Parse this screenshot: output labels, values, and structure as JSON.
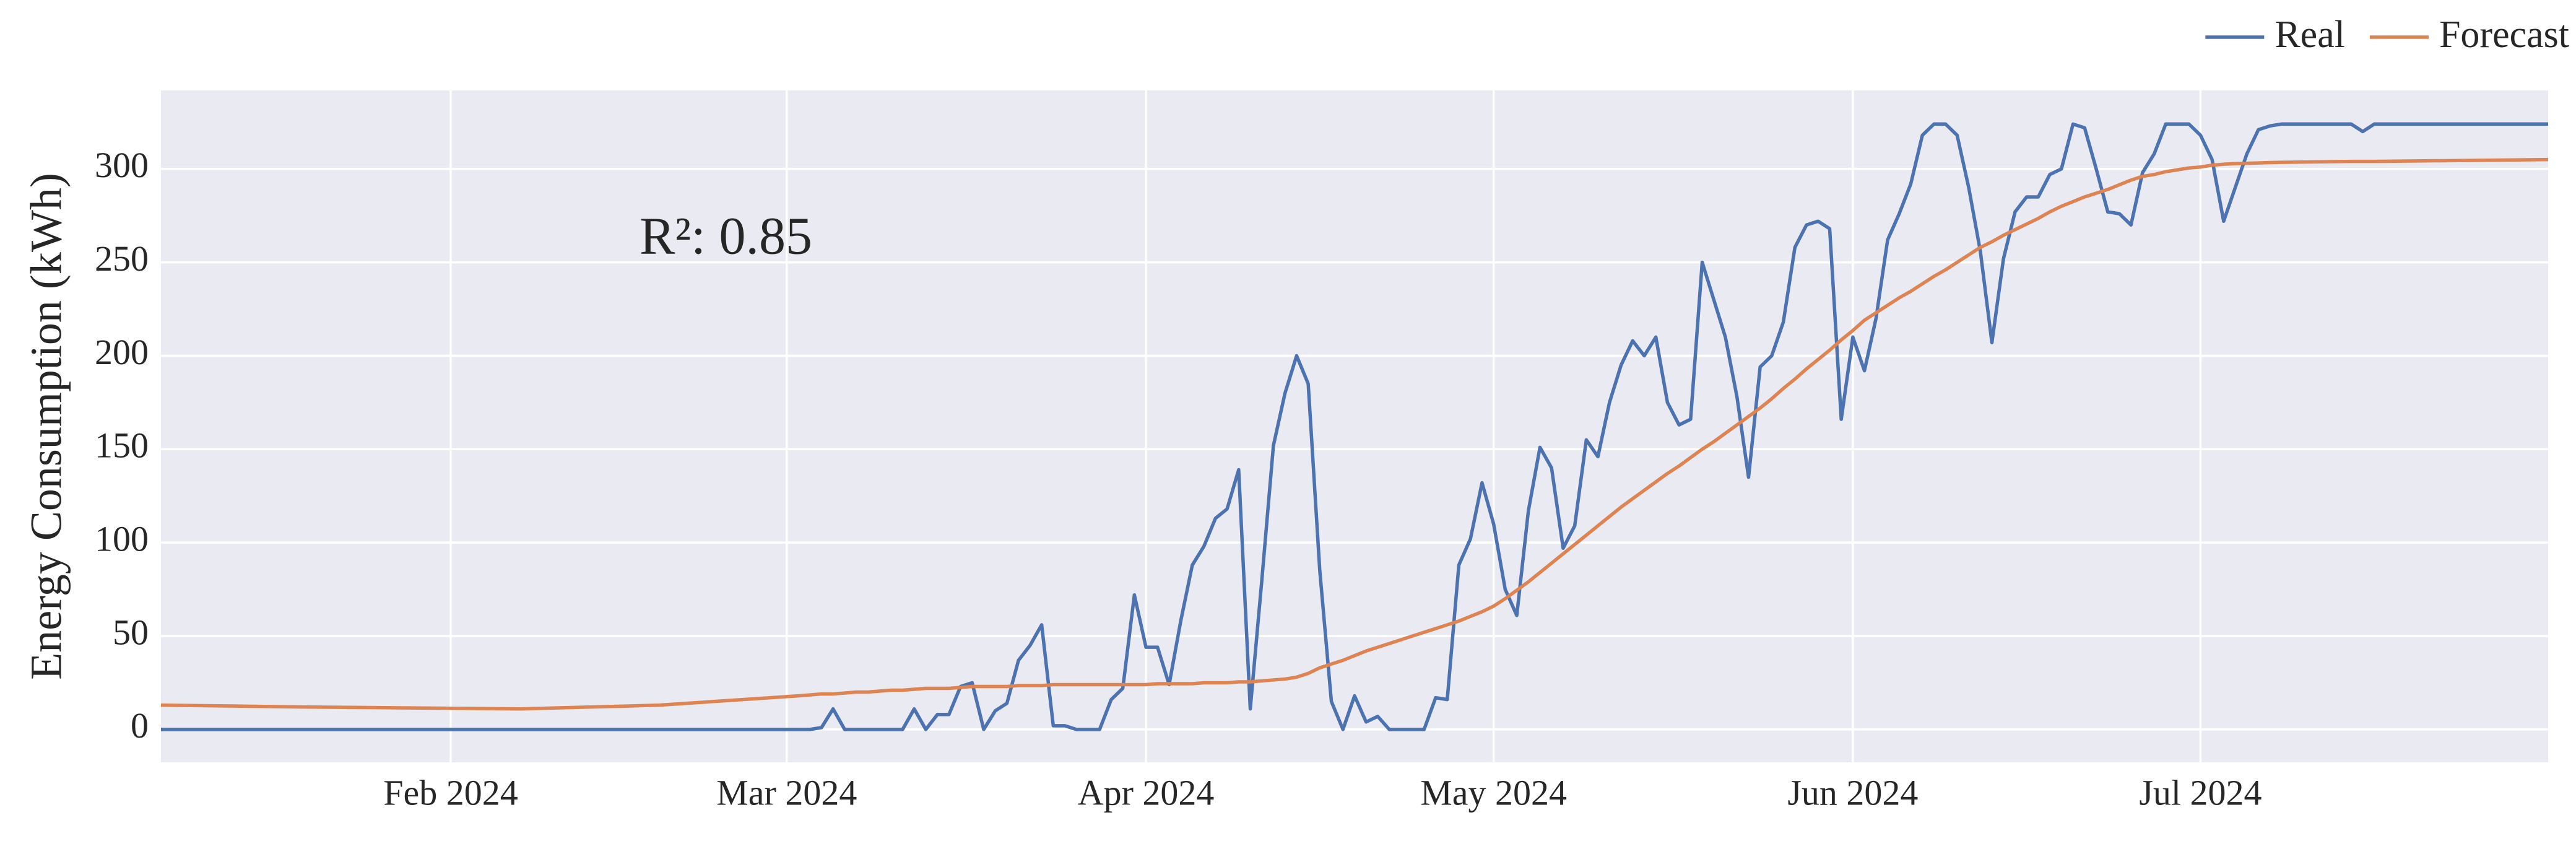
{
  "chart_data": {
    "type": "line",
    "ylabel": "Energy Consumption (kWh)",
    "annotation": "R²: 0.85",
    "legend": "top-right",
    "grid": true,
    "xlim": [
      7,
      213
    ],
    "ylim": [
      -17.6,
      342
    ],
    "xticks": [
      {
        "value": 32,
        "label": "Feb 2024"
      },
      {
        "value": 61,
        "label": "Mar 2024"
      },
      {
        "value": 92,
        "label": "Apr 2024"
      },
      {
        "value": 122,
        "label": "May 2024"
      },
      {
        "value": 153,
        "label": "Jun 2024"
      },
      {
        "value": 183,
        "label": "Jul 2024"
      }
    ],
    "yticks": [
      0,
      50,
      100,
      150,
      200,
      250,
      300
    ],
    "x": [
      7,
      20,
      38,
      50,
      62,
      63,
      64,
      65,
      66,
      67,
      68,
      69,
      70,
      71,
      72,
      73,
      74,
      75,
      76,
      77,
      78,
      79,
      80,
      81,
      82,
      83,
      84,
      85,
      86,
      87,
      88,
      89,
      90,
      91,
      92,
      93,
      94,
      95,
      96,
      97,
      98,
      99,
      100,
      101,
      102,
      103,
      104,
      105,
      106,
      107,
      108,
      109,
      110,
      111,
      112,
      113,
      114,
      115,
      116,
      117,
      118,
      119,
      120,
      121,
      122,
      123,
      124,
      125,
      126,
      127,
      128,
      129,
      130,
      131,
      132,
      133,
      134,
      135,
      136,
      137,
      138,
      139,
      140,
      141,
      142,
      143,
      144,
      145,
      146,
      147,
      148,
      149,
      150,
      151,
      152,
      153,
      154,
      155,
      156,
      157,
      158,
      159,
      160,
      161,
      162,
      163,
      164,
      165,
      166,
      167,
      168,
      169,
      170,
      171,
      172,
      173,
      174,
      175,
      176,
      177,
      178,
      179,
      180,
      181,
      182,
      183,
      184,
      185,
      186,
      187,
      188,
      189,
      190,
      196,
      197,
      198,
      213
    ],
    "series": [
      {
        "name": "Real",
        "color": "#4c72b0",
        "values": [
          0,
          0,
          0,
          0,
          0,
          0,
          1,
          11,
          0,
          0,
          0,
          0,
          0,
          0,
          11,
          0,
          8,
          8,
          23,
          25,
          0,
          10,
          14,
          37,
          45,
          56,
          2,
          2,
          0,
          0,
          0,
          16,
          22,
          72,
          44,
          44,
          24,
          58,
          88,
          98,
          113,
          118,
          139,
          11,
          80,
          152,
          180,
          200,
          185,
          85,
          15,
          0,
          18,
          4,
          7,
          0,
          0,
          0,
          0,
          17,
          16,
          88,
          102,
          132,
          110,
          75,
          61,
          117,
          151,
          140,
          97,
          109,
          155,
          146,
          175,
          195,
          208,
          200,
          210,
          175,
          163,
          166,
          250,
          230,
          210,
          178,
          135,
          194,
          200,
          218,
          258,
          270,
          272,
          268,
          166,
          210,
          192,
          220,
          262,
          276,
          292,
          318,
          324,
          324,
          318,
          290,
          256,
          207,
          252,
          277,
          285,
          285,
          297,
          300,
          324,
          322,
          300,
          277,
          276,
          270,
          298,
          308,
          324,
          324,
          324,
          318,
          305,
          272,
          290,
          308,
          321,
          323,
          324,
          324,
          320,
          324,
          324
        ]
      },
      {
        "name": "Forecast",
        "color": "#dd8452",
        "values": [
          13,
          12,
          11,
          13,
          18,
          18.5,
          19,
          19,
          19.5,
          20,
          20,
          20.5,
          21,
          21,
          21.5,
          22,
          22,
          22,
          22.5,
          23,
          23,
          23,
          23,
          23.5,
          23.5,
          23.5,
          24,
          24,
          24,
          24,
          24,
          24,
          24,
          24,
          24,
          24.5,
          24.5,
          24.5,
          24.5,
          25,
          25,
          25,
          25.5,
          25.5,
          26,
          26.5,
          27,
          28,
          30,
          33,
          35,
          37,
          39.5,
          42,
          44,
          46,
          48,
          50,
          52,
          54,
          56,
          58,
          60.5,
          63,
          66,
          70,
          74.5,
          79,
          84,
          89,
          94,
          99,
          104,
          109,
          114,
          119,
          123.5,
          128,
          132.5,
          137,
          141,
          145.5,
          150,
          154,
          158.5,
          163,
          167.5,
          172,
          177,
          182.5,
          187.5,
          193,
          198,
          203,
          208.5,
          213.5,
          219,
          223,
          227,
          231,
          234.5,
          238.5,
          242.5,
          246,
          250,
          254,
          258,
          261,
          264.5,
          267.5,
          270.5,
          273.5,
          277,
          280,
          282.5,
          285,
          287,
          289,
          291.5,
          294,
          296,
          297,
          298.5,
          299.5,
          300.5,
          301,
          302,
          302.5,
          302.8,
          303,
          303.2,
          303.4,
          303.5,
          304,
          304,
          304,
          305
        ]
      }
    ]
  }
}
